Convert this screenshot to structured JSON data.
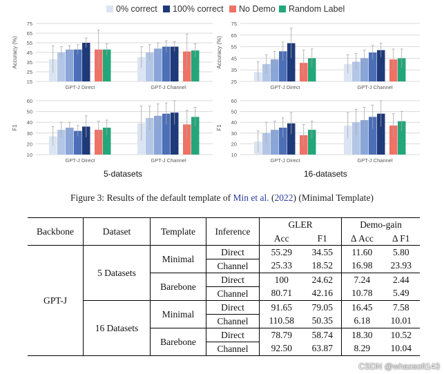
{
  "legend": [
    {
      "label": "0% correct",
      "color": "#dbe4f2"
    },
    {
      "label": "100% correct",
      "color": "#1f3a78"
    },
    {
      "label": "No Demo",
      "color": "#f07166"
    },
    {
      "label": "Random Label",
      "color": "#23a67a"
    }
  ],
  "colors": {
    "grid": "#d9d9d9",
    "errorbar": "#a8a8a8",
    "axis_text": "#555555",
    "link": "#2a3b9e"
  },
  "chart_data": [
    {
      "id": "acc5",
      "type": "bar",
      "ylabel": "Accuracy (%)",
      "ylim": [
        15,
        75
      ],
      "yticks": [
        15,
        25,
        35,
        45,
        55,
        65,
        75
      ],
      "groups": [
        {
          "label": "GPT-J Direct",
          "values": [
            38,
            45,
            48,
            48,
            55,
            48,
            48
          ],
          "err": [
            14,
            6,
            4,
            5,
            5,
            20,
            6
          ]
        },
        {
          "label": "GPT-J Channel",
          "values": [
            40,
            45,
            49,
            51,
            51,
            46,
            47
          ],
          "err": [
            11,
            8,
            6,
            6,
            5,
            18,
            7
          ]
        }
      ]
    },
    {
      "id": "acc16",
      "type": "bar",
      "ylabel": "Accuracy (%)",
      "ylim": [
        25,
        75
      ],
      "yticks": [
        25,
        35,
        45,
        55,
        65,
        75
      ],
      "groups": [
        {
          "label": "GPT-J Direct",
          "values": [
            33,
            40,
            44,
            51,
            58,
            41,
            45
          ],
          "err": [
            9,
            8,
            7,
            8,
            13,
            11,
            8
          ]
        },
        {
          "label": "GPT-J Channel",
          "values": [
            40,
            42,
            45,
            50,
            52,
            44,
            45
          ],
          "err": [
            8,
            7,
            7,
            6,
            6,
            9,
            8
          ]
        }
      ]
    },
    {
      "id": "f15",
      "type": "bar",
      "ylabel": "F1",
      "ylim": [
        10,
        60
      ],
      "yticks": [
        10,
        20,
        30,
        40,
        50,
        60
      ],
      "groups": [
        {
          "label": "GPT-J Direct",
          "values": [
            27,
            33,
            35,
            32,
            36,
            33,
            35
          ],
          "err": [
            9,
            7,
            5,
            5,
            10,
            8,
            7
          ]
        },
        {
          "label": "GPT-J Channel",
          "values": [
            39,
            44,
            46,
            48,
            49,
            38,
            45
          ],
          "err": [
            16,
            11,
            11,
            10,
            11,
            13,
            9
          ]
        }
      ]
    },
    {
      "id": "f116",
      "type": "bar",
      "ylabel": "F1",
      "ylim": [
        10,
        60
      ],
      "yticks": [
        10,
        20,
        30,
        40,
        50,
        60
      ],
      "groups": [
        {
          "label": "GPT-J Direct",
          "values": [
            22,
            30,
            33,
            35,
            39,
            28,
            33
          ],
          "err": [
            10,
            10,
            8,
            9,
            10,
            10,
            8
          ]
        },
        {
          "label": "GPT-J Channel",
          "values": [
            37,
            40,
            42,
            45,
            48,
            37,
            41
          ],
          "err": [
            12,
            12,
            12,
            11,
            12,
            11,
            9
          ]
        }
      ]
    }
  ],
  "series_colors": [
    "#dbe4f2",
    "#b3c6e6",
    "#8aa6d8",
    "#4c6fb8",
    "#1f3a78",
    "#f07166",
    "#23a67a"
  ],
  "group_labels": {
    "left": "5-datasets",
    "right": "16-datasets"
  },
  "caption": {
    "prefix": "Figure 3: Results of the default template of ",
    "cite": "Min et al.",
    "open": " (",
    "year": "2022",
    "close": ")",
    "suffix": " (Minimal Template)"
  },
  "table": {
    "headers": {
      "backbone": "Backbone",
      "dataset": "Dataset",
      "template": "Template",
      "inference": "Inference",
      "gler": "GLER",
      "demogain": "Demo-gain",
      "acc": "Acc",
      "f1": "F1",
      "dacc": "Δ Acc",
      "df1": "Δ F1"
    },
    "backbone": "GPT-J",
    "datasets": [
      "5 Datasets",
      "16 Datasets"
    ],
    "templates": [
      "Minimal",
      "Barebone"
    ],
    "rows": [
      {
        "inference": "Direct",
        "acc": "55.29",
        "f1": "34.55",
        "dacc": "11.60",
        "df1": "5.80"
      },
      {
        "inference": "Channel",
        "acc": "25.33",
        "f1": "18.52",
        "dacc": "16.98",
        "df1": "23.93"
      },
      {
        "inference": "Direct",
        "acc": "100",
        "f1": "24.62",
        "dacc": "7.24",
        "df1": "2.44"
      },
      {
        "inference": "Channel",
        "acc": "80.71",
        "f1": "42.16",
        "dacc": "10.78",
        "df1": "5.49"
      },
      {
        "inference": "Direct",
        "acc": "91.65",
        "f1": "79.05",
        "dacc": "16.45",
        "df1": "7.58"
      },
      {
        "inference": "Channel",
        "acc": "110.58",
        "f1": "50.35",
        "dacc": "6.18",
        "df1": "10.01"
      },
      {
        "inference": "Direct",
        "acc": "78.79",
        "f1": "58.74",
        "dacc": "18.30",
        "df1": "10.52"
      },
      {
        "inference": "Channel",
        "acc": "92.50",
        "f1": "63.87",
        "dacc": "8.29",
        "df1": "10.04"
      }
    ]
  },
  "watermark": "CSDN @whaosoft143"
}
